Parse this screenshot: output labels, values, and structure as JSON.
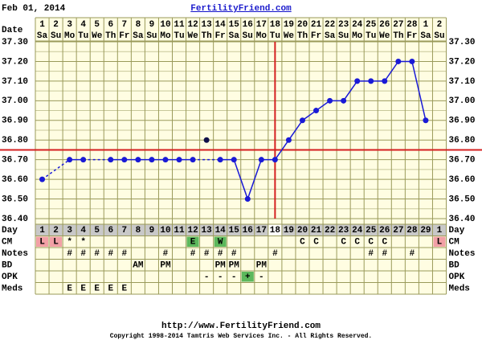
{
  "header": {
    "date": "Feb 01, 2014",
    "site": "FertilityFriend.com"
  },
  "footer": {
    "url": "http://www.FertilityFriend.com",
    "copyright": "Copyright 1998-2014 Tamtris Web Services Inc. - All Rights Reserved."
  },
  "chart_data": {
    "type": "line",
    "date_label": "Date",
    "day_label": "Day",
    "dates": [
      1,
      2,
      3,
      4,
      5,
      6,
      7,
      8,
      9,
      10,
      11,
      12,
      13,
      14,
      15,
      16,
      17,
      18,
      19,
      20,
      21,
      22,
      23,
      24,
      25,
      26,
      27,
      28,
      1,
      2
    ],
    "weekdays": [
      "Sa",
      "Su",
      "Mo",
      "Tu",
      "We",
      "Th",
      "Fr",
      "Sa",
      "Su",
      "Mo",
      "Tu",
      "We",
      "Th",
      "Fr",
      "Sa",
      "Su",
      "Mo",
      "Tu",
      "We",
      "Th",
      "Fr",
      "Sa",
      "Su",
      "Mo",
      "Tu",
      "We",
      "Th",
      "Fr",
      "Sa",
      "Su"
    ],
    "days": [
      1,
      2,
      3,
      4,
      5,
      6,
      7,
      8,
      9,
      10,
      11,
      12,
      13,
      14,
      15,
      16,
      17,
      18,
      19,
      20,
      21,
      22,
      23,
      24,
      25,
      26,
      27,
      28,
      29,
      1
    ],
    "series": [
      {
        "color": "#1a1ad6",
        "values": [
          36.6,
          null,
          36.7,
          36.7,
          null,
          36.7,
          36.7,
          36.7,
          36.7,
          36.7,
          36.7,
          36.7,
          null,
          36.7,
          36.7,
          36.5,
          36.7,
          36.7,
          36.8,
          36.9,
          36.95,
          37.0,
          37.0,
          37.1,
          37.1,
          37.1,
          37.2,
          37.2,
          36.9,
          null
        ]
      }
    ],
    "discarded": {
      "color": "#10104a",
      "values": [
        null,
        null,
        null,
        null,
        null,
        null,
        null,
        null,
        null,
        null,
        null,
        null,
        36.8,
        null,
        null,
        null,
        null,
        null,
        null,
        null,
        null,
        null,
        null,
        null,
        null,
        null,
        null,
        null,
        null,
        null
      ]
    },
    "ylim": [
      36.4,
      37.3
    ],
    "yticks": [
      {
        "value": 36.4,
        "label": "36.40"
      },
      {
        "value": 36.5,
        "label": "36.50"
      },
      {
        "value": 36.6,
        "label": "36.60"
      },
      {
        "value": 36.7,
        "label": "36.70"
      },
      {
        "value": 36.8,
        "label": "36.80"
      },
      {
        "value": 36.9,
        "label": "36.90"
      },
      {
        "value": 37.0,
        "label": "37.00"
      },
      {
        "value": 37.1,
        "label": "37.10"
      },
      {
        "value": 37.2,
        "label": "37.20"
      },
      {
        "value": 37.3,
        "label": "37.30"
      }
    ],
    "grid": true,
    "coverline": 36.75,
    "ovulation_day": 18,
    "marker_color": "#d42020",
    "rows": [
      {
        "label": "CM",
        "cells": [
          "L",
          "L",
          "*",
          "*",
          null,
          null,
          null,
          null,
          null,
          null,
          null,
          "E",
          null,
          "W",
          null,
          null,
          null,
          null,
          null,
          "C",
          "C",
          null,
          "C",
          "C",
          "C",
          "C",
          null,
          null,
          null,
          "L"
        ],
        "colors": [
          "#f2a0a6",
          "#f2a0a6",
          null,
          null,
          null,
          null,
          null,
          null,
          null,
          null,
          null,
          "#5cb85c",
          null,
          "#5cb85c",
          null,
          null,
          null,
          null,
          null,
          null,
          null,
          null,
          null,
          null,
          null,
          null,
          null,
          null,
          null,
          "#f2a0a6"
        ]
      },
      {
        "label": "Notes",
        "cells": [
          null,
          null,
          "#",
          "#",
          "#",
          "#",
          "#",
          null,
          null,
          "#",
          null,
          "#",
          "#",
          "#",
          "#",
          null,
          null,
          "#",
          null,
          null,
          null,
          null,
          null,
          null,
          "#",
          "#",
          null,
          "#",
          null,
          null
        ]
      },
      {
        "label": "BD",
        "cells": [
          null,
          null,
          null,
          null,
          null,
          null,
          null,
          "AM",
          null,
          "PM",
          null,
          null,
          null,
          "PM",
          "PM",
          null,
          "PM",
          null,
          null,
          null,
          null,
          null,
          null,
          null,
          null,
          null,
          null,
          null,
          null,
          null
        ]
      },
      {
        "label": "OPK",
        "cells": [
          null,
          null,
          null,
          null,
          null,
          null,
          null,
          null,
          null,
          null,
          null,
          null,
          "-",
          "-",
          "-",
          "+",
          "-",
          null,
          null,
          null,
          null,
          null,
          null,
          null,
          null,
          null,
          null,
          null,
          null,
          null
        ],
        "colors": [
          null,
          null,
          null,
          null,
          null,
          null,
          null,
          null,
          null,
          null,
          null,
          null,
          null,
          null,
          null,
          "#5cb85c",
          null,
          null,
          null,
          null,
          null,
          null,
          null,
          null,
          null,
          null,
          null,
          null,
          null,
          null
        ]
      },
      {
        "label": "Meds",
        "cells": [
          null,
          null,
          "E",
          "E",
          "E",
          "E",
          "E",
          null,
          null,
          null,
          null,
          null,
          null,
          null,
          null,
          null,
          null,
          null,
          null,
          null,
          null,
          null,
          null,
          null,
          null,
          null,
          null,
          null,
          null,
          null
        ]
      }
    ]
  }
}
